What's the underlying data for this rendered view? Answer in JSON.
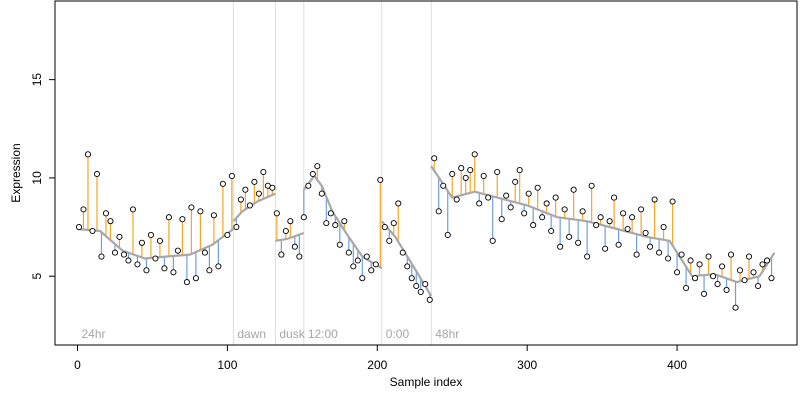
{
  "chart_data": {
    "type": "scatter",
    "title": "",
    "xlabel": "Sample index",
    "ylabel": "Expression",
    "xlim": [
      -15,
      480
    ],
    "ylim": [
      1.5,
      19
    ],
    "xticks": [
      0,
      100,
      200,
      300,
      400
    ],
    "yticks": [
      5,
      10,
      15
    ],
    "grid": false,
    "legend": "none",
    "colors": {
      "points_stroke": "#000000",
      "points_fill": "#ffffff",
      "fit_line": "#a8a8a8",
      "above_residual": "#f5a623",
      "below_residual": "#6f9fe0",
      "section_line": "#dddddd",
      "section_text": "#a6a6a6"
    },
    "sections": [
      {
        "label": "24hr",
        "start": 0
      },
      {
        "label": "dawn",
        "start": 104
      },
      {
        "label": "dusk",
        "start": 132
      },
      {
        "label": "12:00",
        "start": 151
      },
      {
        "label": "0:00",
        "start": 203
      },
      {
        "label": "48hr",
        "start": 236
      }
    ],
    "series": [
      {
        "name": "",
        "fit_segments": [
          {
            "x": [
              0,
              15,
              30,
              45,
              60,
              75,
              90,
              104
            ],
            "y": [
              7.4,
              7.3,
              6.3,
              5.9,
              6.0,
              6.1,
              6.6,
              7.4
            ]
          },
          {
            "x": [
              104,
              110,
              120,
              132
            ],
            "y": [
              7.8,
              8.3,
              8.8,
              9.2
            ]
          },
          {
            "x": [
              132,
              140,
              151
            ],
            "y": [
              6.8,
              6.9,
              7.2
            ]
          },
          {
            "x": [
              151,
              158,
              163,
              170,
              180,
              190,
              203
            ],
            "y": [
              9.4,
              10.1,
              9.6,
              8.3,
              7.1,
              6.0,
              5.4
            ]
          },
          {
            "x": [
              203,
              212,
              220,
              228,
              236
            ],
            "y": [
              7.8,
              7.0,
              6.0,
              5.0,
              4.0
            ]
          },
          {
            "x": [
              236,
              250,
              265,
              280,
              300,
              320,
              340,
              360,
              380,
              395,
              410,
              425,
              440,
              455,
              465
            ],
            "y": [
              10.6,
              9.0,
              9.3,
              9.0,
              8.6,
              8.0,
              7.8,
              7.4,
              7.0,
              6.8,
              5.0,
              5.1,
              4.7,
              5.0,
              6.2
            ]
          }
        ],
        "x": [
          1,
          4,
          7,
          10,
          13,
          16,
          19,
          22,
          25,
          28,
          31,
          34,
          37,
          40,
          43,
          46,
          49,
          52,
          55,
          58,
          61,
          64,
          67,
          70,
          73,
          76,
          79,
          82,
          85,
          88,
          91,
          94,
          97,
          100,
          103,
          106,
          109,
          112,
          115,
          118,
          121,
          124,
          127,
          130,
          133,
          136,
          139,
          142,
          145,
          148,
          151,
          154,
          157,
          160,
          163,
          166,
          169,
          172,
          175,
          178,
          181,
          184,
          187,
          190,
          193,
          196,
          199,
          202,
          205,
          208,
          211,
          214,
          217,
          220,
          223,
          226,
          229,
          232,
          235,
          238,
          241,
          244,
          247,
          250,
          253,
          256,
          259,
          262,
          265,
          268,
          271,
          274,
          277,
          280,
          283,
          286,
          289,
          292,
          295,
          298,
          301,
          304,
          307,
          310,
          313,
          316,
          319,
          322,
          325,
          328,
          331,
          334,
          337,
          340,
          343,
          346,
          349,
          352,
          355,
          358,
          361,
          364,
          367,
          370,
          373,
          376,
          379,
          382,
          385,
          388,
          391,
          394,
          397,
          400,
          403,
          406,
          409,
          412,
          415,
          418,
          421,
          424,
          427,
          430,
          433,
          436,
          439,
          442,
          445,
          448,
          451,
          454,
          457,
          460,
          463
        ],
        "y": [
          7.5,
          8.4,
          11.2,
          7.3,
          10.2,
          6.0,
          8.2,
          7.8,
          6.2,
          7.0,
          6.1,
          5.8,
          8.4,
          5.6,
          6.7,
          5.3,
          7.1,
          5.9,
          6.8,
          5.4,
          8.0,
          5.2,
          6.3,
          7.9,
          4.7,
          8.5,
          4.9,
          8.3,
          6.2,
          5.3,
          8.1,
          5.5,
          9.7,
          7.1,
          10.1,
          7.5,
          8.9,
          9.4,
          8.6,
          9.8,
          9.2,
          10.3,
          9.6,
          9.5,
          8.2,
          6.1,
          7.3,
          7.8,
          6.5,
          6.0,
          8.0,
          9.6,
          10.2,
          10.6,
          9.2,
          7.7,
          8.2,
          7.6,
          6.6,
          7.8,
          6.2,
          5.5,
          5.8,
          4.9,
          6.0,
          5.3,
          5.6,
          9.9,
          7.5,
          6.8,
          7.7,
          8.7,
          6.2,
          5.5,
          4.9,
          4.5,
          4.2,
          4.6,
          3.8,
          11.0,
          8.3,
          9.6,
          7.1,
          10.2,
          8.9,
          10.5,
          10.0,
          10.4,
          11.2,
          8.7,
          10.1,
          9.0,
          6.8,
          10.3,
          7.9,
          9.1,
          8.5,
          9.8,
          10.4,
          8.2,
          9.2,
          7.6,
          9.5,
          8.0,
          8.7,
          7.3,
          9.0,
          6.5,
          8.4,
          7.0,
          9.4,
          6.7,
          8.3,
          6.0,
          9.6,
          7.6,
          8.0,
          6.4,
          7.8,
          9.0,
          6.6,
          8.2,
          7.4,
          8.0,
          6.1,
          8.4,
          7.2,
          6.5,
          8.9,
          6.2,
          7.5,
          5.9,
          8.8,
          5.2,
          6.1,
          4.4,
          5.8,
          4.9,
          5.6,
          4.1,
          6.0,
          5.0,
          4.6,
          5.5,
          4.3,
          6.1,
          3.4,
          5.3,
          4.8,
          6.0,
          5.2,
          4.5,
          5.6,
          5.8,
          4.9
        ]
      }
    ]
  }
}
